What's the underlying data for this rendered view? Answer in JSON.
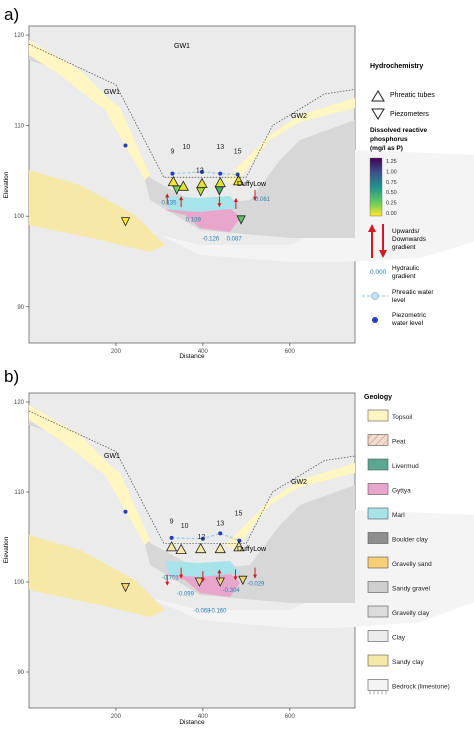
{
  "colors": {
    "panel_bg": "#ebebeb",
    "topsoil": "#fff6c2",
    "peat": "#f3ddd0",
    "livermud": "#5ba892",
    "gyttya": "#e9a6cc",
    "marl": "#a6e3ea",
    "boulder_clay": "#8e8e8e",
    "gravelly_sand": "#f7cf76",
    "sandy_gravel": "#cfcfcf",
    "gravelly_clay": "#dcdcdc",
    "clay": "#ececec",
    "sandy_clay": "#f6e8a6",
    "bedrock": "#f4f4f4",
    "upward_arrow": "#d7191c",
    "gradient_text": "#2c7fb8",
    "phreatic_line": "#9ec9e2",
    "piezometric_point": "#1f3fbf",
    "viridis_low": "#fde725",
    "viridis_high": "#440154"
  },
  "panel_a": {
    "panel_label": "a)",
    "gw1_top": "GW1",
    "gw1_side": "GW1",
    "gw2": "GW2",
    "site_label": "DuffyLow",
    "legend": {
      "title": "Hydrochemistry",
      "phreatic": "Phreatic tubes",
      "piezometers": "Piezometers",
      "drp_title_1": "Dissolved reactive",
      "drp_title_2": "phosphorus",
      "drp_title_3": "(mg/l as P)",
      "colorbar_ticks": [
        "1.25",
        "1.00",
        "0.75",
        "0.50",
        "0.25",
        "0.00"
      ],
      "gradient_line_1": "Upwards/",
      "gradient_line_2": "Downwards",
      "gradient_line_3": "gradient",
      "hydraulic_value": "0.000",
      "hydraulic_line_1": "Hydraulic",
      "hydraulic_line_2": "gradient",
      "phreatic_line_1": "Phreatic water",
      "phreatic_line_2": "level",
      "piezo_line_1": "Piezometric",
      "piezo_line_2": "water level"
    }
  },
  "panel_b": {
    "panel_label": "b)",
    "gw1": "GW1",
    "gw2": "GW2",
    "site_label": "DuffyLow",
    "legend_title": "Geology",
    "geology": [
      {
        "label": "Topsoil",
        "color": "#fff6c2"
      },
      {
        "label": "Peat",
        "color": "#f3ddd0",
        "hatch": true
      },
      {
        "label": "Livermud",
        "color": "#5ba892"
      },
      {
        "label": "Gyttya",
        "color": "#e9a6cc"
      },
      {
        "label": "Marl",
        "color": "#a6e3ea"
      },
      {
        "label": "Boulder clay",
        "color": "#8e8e8e"
      },
      {
        "label": "Gravelly sand",
        "color": "#f7cf76"
      },
      {
        "label": "Sandy gravel",
        "color": "#cfcfcf"
      },
      {
        "label": "Gravelly clay",
        "color": "#dcdcdc"
      },
      {
        "label": "Clay",
        "color": "#ececec"
      },
      {
        "label": "Sandy clay",
        "color": "#f6e8a6"
      },
      {
        "label": "Bedrock (limestone)",
        "color": "#f4f4f4",
        "bedrock": true
      }
    ]
  },
  "chart_data": [
    {
      "type": "scatter",
      "title": "",
      "xlabel": "Distance",
      "ylabel": "Elevation",
      "xlim": [
        0,
        750
      ],
      "ylim": [
        86,
        121
      ],
      "x_ticks": [
        200,
        400,
        600
      ],
      "y_ticks": [
        90,
        100,
        110,
        120
      ],
      "grid": false,
      "tube_labels": [
        {
          "label": "9",
          "x": 330,
          "y": 106.9
        },
        {
          "label": "10",
          "x": 362,
          "y": 107.4
        },
        {
          "label": "12",
          "x": 393,
          "y": 104.8
        },
        {
          "label": "13",
          "x": 440,
          "y": 107.4
        },
        {
          "label": "15",
          "x": 480,
          "y": 106.9
        }
      ],
      "phreatic_tubes": [
        {
          "x": 332,
          "y": 103.8,
          "drp": 0.02
        },
        {
          "x": 355,
          "y": 103.3,
          "drp": 0.05
        },
        {
          "x": 398,
          "y": 103.6,
          "drp": 0.06
        },
        {
          "x": 440,
          "y": 103.7,
          "drp": 0.05
        },
        {
          "x": 482,
          "y": 103.9,
          "drp": 0.03
        }
      ],
      "piezometers": [
        {
          "x": 222,
          "y": 99.4,
          "drp": 0.0
        },
        {
          "x": 340,
          "y": 102.9,
          "drp": 0.25
        },
        {
          "x": 395,
          "y": 102.7,
          "drp": 0.15
        },
        {
          "x": 438,
          "y": 102.8,
          "drp": 0.45
        },
        {
          "x": 488,
          "y": 99.6,
          "drp": 0.35
        }
      ],
      "piezometric_levels": [
        {
          "x": 222,
          "y": 107.8
        },
        {
          "x": 330,
          "y": 104.7
        },
        {
          "x": 398,
          "y": 104.9
        },
        {
          "x": 440,
          "y": 104.7
        },
        {
          "x": 480,
          "y": 104.6
        }
      ],
      "hydraulic_gradients": [
        {
          "label": "0.135",
          "x": 322,
          "y": 101.3
        },
        {
          "label": "0.109",
          "x": 378,
          "y": 99.4
        },
        {
          "label": "-0.126",
          "x": 418,
          "y": 97.3
        },
        {
          "label": "0.087",
          "x": 472,
          "y": 97.3
        },
        {
          "label": "-0.061",
          "x": 535,
          "y": 101.7
        }
      ],
      "gradient_arrows": [
        {
          "x": 318,
          "y": 102.3,
          "direction": "up"
        },
        {
          "x": 350,
          "y": 102.0,
          "direction": "up"
        },
        {
          "x": 438,
          "y": 102.2,
          "direction": "down"
        },
        {
          "x": 476,
          "y": 101.8,
          "direction": "up"
        },
        {
          "x": 520,
          "y": 102.9,
          "direction": "down"
        }
      ]
    },
    {
      "type": "scatter",
      "title": "",
      "xlabel": "Distance",
      "ylabel": "Elevation",
      "xlim": [
        0,
        750
      ],
      "ylim": [
        86,
        121
      ],
      "x_ticks": [
        200,
        400,
        600
      ],
      "y_ticks": [
        90,
        100,
        110,
        120
      ],
      "grid": false,
      "tube_labels": [
        {
          "label": "9",
          "x": 328,
          "y": 106.5
        },
        {
          "label": "10",
          "x": 358,
          "y": 106.0
        },
        {
          "label": "12",
          "x": 397,
          "y": 104.8
        },
        {
          "label": "13",
          "x": 440,
          "y": 106.3
        },
        {
          "label": "15",
          "x": 482,
          "y": 107.4
        }
      ],
      "phreatic_tubes": [
        {
          "x": 328,
          "y": 103.9
        },
        {
          "x": 350,
          "y": 103.6
        },
        {
          "x": 395,
          "y": 103.7
        },
        {
          "x": 440,
          "y": 103.7
        },
        {
          "x": 483,
          "y": 103.9
        }
      ],
      "piezometers": [
        {
          "x": 222,
          "y": 99.4
        },
        {
          "x": 392,
          "y": 100.0
        },
        {
          "x": 440,
          "y": 100.0
        },
        {
          "x": 492,
          "y": 100.2
        }
      ],
      "piezometric_levels": [
        {
          "x": 222,
          "y": 107.8
        },
        {
          "x": 328,
          "y": 104.9
        },
        {
          "x": 400,
          "y": 104.8
        },
        {
          "x": 440,
          "y": 105.4
        },
        {
          "x": 484,
          "y": 104.6
        }
      ],
      "hydraulic_gradients": [
        {
          "label": "-0.701",
          "x": 325,
          "y": 100.3
        },
        {
          "label": "-0.099",
          "x": 360,
          "y": 98.5
        },
        {
          "label": "-0.068",
          "x": 398,
          "y": 96.6
        },
        {
          "label": "+0.160",
          "x": 433,
          "y": 96.6
        },
        {
          "label": "-0.304",
          "x": 465,
          "y": 98.9
        },
        {
          "label": "-0.029",
          "x": 522,
          "y": 99.6
        }
      ],
      "gradient_arrows": [
        {
          "x": 318,
          "y": 100.8,
          "direction": "down"
        },
        {
          "x": 350,
          "y": 101.6,
          "direction": "down"
        },
        {
          "x": 400,
          "y": 101.2,
          "direction": "down"
        },
        {
          "x": 438,
          "y": 101.2,
          "direction": "up"
        },
        {
          "x": 475,
          "y": 101.4,
          "direction": "down"
        },
        {
          "x": 520,
          "y": 101.6,
          "direction": "down"
        }
      ]
    }
  ]
}
